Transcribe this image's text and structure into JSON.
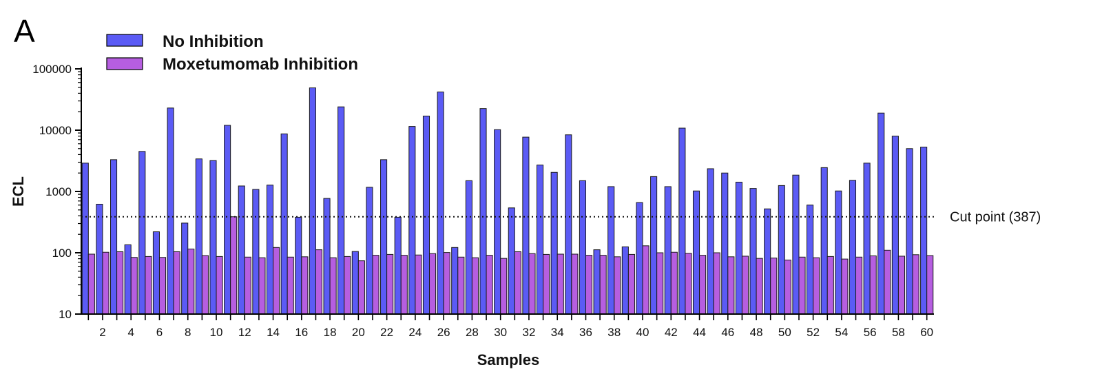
{
  "panel_label": "A",
  "chart_data": {
    "type": "bar",
    "title": "",
    "xlabel": "Samples",
    "ylabel": "ECL",
    "yscale": "log",
    "ylim": [
      10,
      100000
    ],
    "yticks": [
      "10",
      "100",
      "1000",
      "10000",
      "100000"
    ],
    "categories": [
      1,
      2,
      3,
      4,
      5,
      6,
      7,
      8,
      9,
      10,
      11,
      12,
      13,
      14,
      15,
      16,
      17,
      18,
      19,
      20,
      21,
      22,
      23,
      24,
      25,
      26,
      27,
      28,
      29,
      30,
      31,
      32,
      33,
      34,
      35,
      36,
      37,
      38,
      39,
      40,
      41,
      42,
      43,
      44,
      45,
      46,
      47,
      48,
      49,
      50,
      51,
      52,
      53,
      54,
      55,
      56,
      57,
      58,
      59,
      60
    ],
    "xtick_labels": [
      "2",
      "4",
      "6",
      "8",
      "10",
      "12",
      "14",
      "16",
      "18",
      "20",
      "22",
      "24",
      "26",
      "28",
      "30",
      "32",
      "34",
      "36",
      "38",
      "40",
      "42",
      "44",
      "46",
      "48",
      "50",
      "52",
      "54",
      "56",
      "58",
      "60"
    ],
    "legend_position": "top-left",
    "series": [
      {
        "name": "No Inhibition",
        "color": "#5b5bf5",
        "values": [
          2900,
          620,
          3300,
          135,
          4500,
          220,
          23000,
          305,
          3400,
          3200,
          12000,
          1230,
          1080,
          1270,
          8700,
          380,
          49000,
          770,
          24000,
          105,
          1170,
          3300,
          380,
          11500,
          17000,
          42000,
          122,
          1500,
          22500,
          10200,
          540,
          7700,
          2700,
          2050,
          8400,
          1500,
          112,
          1200,
          125,
          660,
          1750,
          1200,
          10800,
          1020,
          2350,
          2000,
          1420,
          1120,
          520,
          1250,
          1850,
          600,
          2450,
          1020,
          1520,
          2900,
          19000,
          8000,
          5000,
          5300
        ]
      },
      {
        "name": "Moxetumomab Inhibition",
        "color": "#b65ee0",
        "values": [
          95,
          102,
          104,
          84,
          87,
          84,
          104,
          115,
          90,
          87,
          387,
          85,
          83,
          122,
          85,
          86,
          112,
          83,
          87,
          74,
          91,
          94,
          91,
          92,
          97,
          101,
          85,
          83,
          91,
          81,
          104,
          97,
          94,
          95,
          95,
          91,
          91,
          86,
          94,
          130,
          100,
          102,
          98,
          91,
          100,
          86,
          88,
          81,
          82,
          76,
          85,
          83,
          87,
          79,
          85,
          89,
          110,
          88,
          93,
          90
        ]
      }
    ],
    "reference_line": {
      "value": 387,
      "label": "Cut point (387)",
      "style": "dotted"
    }
  }
}
